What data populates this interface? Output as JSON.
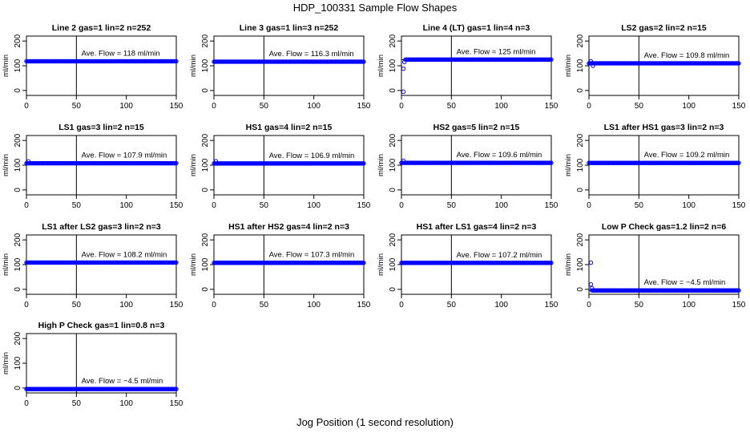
{
  "title": "HDP_100331  Sample Flow Shapes",
  "xlabel": "Jog Position (1 second resolution)",
  "chart_data": [
    {
      "type": "scatter",
      "title": "Line 2 gas=1 lin=2 n=252",
      "ylabel": "ml/min",
      "xlim": [
        0,
        150
      ],
      "ylim": [
        -20,
        220
      ],
      "xticks": [
        0,
        50,
        100,
        150
      ],
      "yticks": [
        0,
        100,
        200
      ],
      "vline": 50,
      "hline": 118,
      "annotation": "Ave. Flow =  118  ml/min",
      "outliers": [],
      "plateau": 118,
      "x_range": [
        0,
        150
      ]
    },
    {
      "type": "scatter",
      "title": "Line 3 gas=1 lin=3 n=252",
      "ylabel": "ml/min",
      "xlim": [
        0,
        150
      ],
      "ylim": [
        -20,
        220
      ],
      "xticks": [
        0,
        50,
        100,
        150
      ],
      "yticks": [
        0,
        100,
        200
      ],
      "vline": 50,
      "hline": 116.3,
      "annotation": "Ave. Flow =  116.3  ml/min",
      "outliers": [],
      "plateau": 116.3,
      "x_range": [
        0,
        150
      ]
    },
    {
      "type": "scatter",
      "title": "Line 4 (LT) gas=1 lin=4 n=3",
      "ylabel": "ml/min",
      "xlim": [
        0,
        150
      ],
      "ylim": [
        -20,
        220
      ],
      "xticks": [
        0,
        50,
        100,
        150
      ],
      "yticks": [
        0,
        100,
        200
      ],
      "vline": 50,
      "hline": 125,
      "annotation": "Ave. Flow =  125  ml/min",
      "outliers": [
        [
          2,
          -5
        ],
        [
          2,
          88
        ],
        [
          3,
          115
        ]
      ],
      "plateau": 125,
      "x_range": [
        4,
        150
      ]
    },
    {
      "type": "scatter",
      "title": "LS2 gas=2 lin=2 n=15",
      "ylabel": "ml/min",
      "xlim": [
        0,
        150
      ],
      "ylim": [
        -20,
        220
      ],
      "xticks": [
        0,
        50,
        100,
        150
      ],
      "yticks": [
        0,
        100,
        200
      ],
      "vline": 50,
      "hline": 109.8,
      "annotation": "Ave. Flow =  109.8  ml/min",
      "outliers": [
        [
          2,
          118
        ],
        [
          4,
          100
        ]
      ],
      "plateau": 109.8,
      "x_range": [
        0,
        150
      ]
    },
    {
      "type": "scatter",
      "title": "LS1 gas=3 lin=2 n=15",
      "ylabel": "ml/min",
      "xlim": [
        0,
        150
      ],
      "ylim": [
        -20,
        220
      ],
      "xticks": [
        0,
        50,
        100,
        150
      ],
      "yticks": [
        0,
        100,
        200
      ],
      "vline": 50,
      "hline": 107.9,
      "annotation": "Ave. Flow =  107.9  ml/min",
      "outliers": [
        [
          2,
          115
        ]
      ],
      "plateau": 107.9,
      "x_range": [
        0,
        150
      ]
    },
    {
      "type": "scatter",
      "title": "HS1 gas=4 lin=2 n=15",
      "ylabel": "ml/min",
      "xlim": [
        0,
        150
      ],
      "ylim": [
        -20,
        220
      ],
      "xticks": [
        0,
        50,
        100,
        150
      ],
      "yticks": [
        0,
        100,
        200
      ],
      "vline": 50,
      "hline": 106.9,
      "annotation": "Ave. Flow =  106.9  ml/min",
      "outliers": [
        [
          2,
          116
        ]
      ],
      "plateau": 106.9,
      "x_range": [
        0,
        150
      ]
    },
    {
      "type": "scatter",
      "title": "HS2 gas=5 lin=2 n=15",
      "ylabel": "ml/min",
      "xlim": [
        0,
        150
      ],
      "ylim": [
        -20,
        220
      ],
      "xticks": [
        0,
        50,
        100,
        150
      ],
      "yticks": [
        0,
        100,
        200
      ],
      "vline": 50,
      "hline": 109.6,
      "annotation": "Ave. Flow =  109.6  ml/min",
      "outliers": [
        [
          2,
          118
        ]
      ],
      "plateau": 109.6,
      "x_range": [
        0,
        150
      ]
    },
    {
      "type": "scatter",
      "title": "LS1 after HS1 gas=3 lin=2 n=3",
      "ylabel": "ml/min",
      "xlim": [
        0,
        150
      ],
      "ylim": [
        -20,
        220
      ],
      "xticks": [
        0,
        50,
        100,
        150
      ],
      "yticks": [
        0,
        100,
        200
      ],
      "vline": 50,
      "hline": 109.2,
      "annotation": "Ave. Flow =  109.2  ml/min",
      "outliers": [],
      "plateau": 109.2,
      "x_range": [
        0,
        150
      ]
    },
    {
      "type": "scatter",
      "title": "LS1 after LS2 gas=3 lin=2 n=3",
      "ylabel": "ml/min",
      "xlim": [
        0,
        150
      ],
      "ylim": [
        -20,
        220
      ],
      "xticks": [
        0,
        50,
        100,
        150
      ],
      "yticks": [
        0,
        100,
        200
      ],
      "vline": 50,
      "hline": 108.2,
      "annotation": "Ave. Flow =  108.2  ml/min",
      "outliers": [],
      "plateau": 108.2,
      "x_range": [
        0,
        150
      ]
    },
    {
      "type": "scatter",
      "title": "HS1 after HS2 gas=4 lin=2 n=3",
      "ylabel": "ml/min",
      "xlim": [
        0,
        150
      ],
      "ylim": [
        -20,
        220
      ],
      "xticks": [
        0,
        50,
        100,
        150
      ],
      "yticks": [
        0,
        100,
        200
      ],
      "vline": 50,
      "hline": 107.3,
      "annotation": "Ave. Flow =  107.3  ml/min",
      "outliers": [],
      "plateau": 107.3,
      "x_range": [
        0,
        150
      ]
    },
    {
      "type": "scatter",
      "title": "HS1 after LS1 gas=4 lin=2 n=3",
      "ylabel": "ml/min",
      "xlim": [
        0,
        150
      ],
      "ylim": [
        -20,
        220
      ],
      "xticks": [
        0,
        50,
        100,
        150
      ],
      "yticks": [
        0,
        100,
        200
      ],
      "vline": 50,
      "hline": 107.2,
      "annotation": "Ave. Flow =  107.2  ml/min",
      "outliers": [],
      "plateau": 107.2,
      "x_range": [
        0,
        150
      ]
    },
    {
      "type": "scatter",
      "title": "Low P Check gas=1.2 lin=2 n=6",
      "ylabel": "ml/min",
      "xlim": [
        0,
        150
      ],
      "ylim": [
        -20,
        220
      ],
      "xticks": [
        0,
        50,
        100,
        150
      ],
      "yticks": [
        0,
        100,
        200
      ],
      "vline": 50,
      "hline": -4.5,
      "annotation": "Ave. Flow =  −4.5  ml/min",
      "outliers": [
        [
          2,
          108
        ],
        [
          2,
          20
        ],
        [
          3,
          5
        ]
      ],
      "plateau": -4.5,
      "x_range": [
        3,
        150
      ]
    },
    {
      "type": "scatter",
      "title": "High P Check gas=1 lin=0.8 n=3",
      "ylabel": "ml/min",
      "xlim": [
        0,
        150
      ],
      "ylim": [
        -20,
        220
      ],
      "xticks": [
        0,
        50,
        100,
        150
      ],
      "yticks": [
        0,
        100,
        200
      ],
      "vline": 50,
      "hline": -4.5,
      "annotation": "Ave. Flow =  −4.5  ml/min",
      "outliers": [],
      "plateau": -4.5,
      "x_range": [
        0,
        150
      ]
    }
  ],
  "colors": {
    "points": "#0000ff",
    "axes": "#000000",
    "background": "#ffffff"
  }
}
